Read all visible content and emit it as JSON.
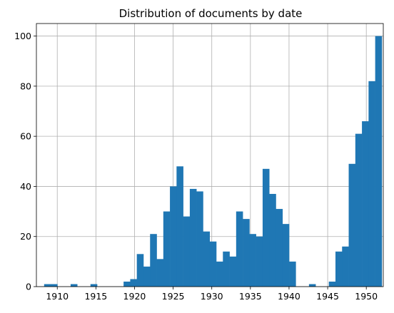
{
  "chart_data": {
    "type": "bar",
    "title": "Distribution of documents by date",
    "xlabel": "",
    "ylabel": "",
    "x_ticks": [
      1910,
      1915,
      1920,
      1925,
      1930,
      1935,
      1940,
      1945,
      1950
    ],
    "y_ticks": [
      0,
      20,
      40,
      60,
      80,
      100
    ],
    "xlim": [
      1907.3,
      1952.2
    ],
    "ylim": [
      0,
      105
    ],
    "bin_width": 0.857,
    "bins_start": 1908.3,
    "values": [
      1,
      1,
      0,
      0,
      1,
      0,
      0,
      1,
      0,
      0,
      0,
      0,
      2,
      3,
      13,
      8,
      21,
      11,
      30,
      40,
      48,
      28,
      39,
      38,
      22,
      18,
      10,
      14,
      12,
      30,
      27,
      21,
      20,
      47,
      37,
      31,
      25,
      10,
      0,
      0,
      1,
      0,
      0,
      2,
      14,
      16,
      49,
      61,
      66,
      82,
      100
    ],
    "grid": true,
    "legend": "none",
    "bar_color": "#1f77b4"
  }
}
